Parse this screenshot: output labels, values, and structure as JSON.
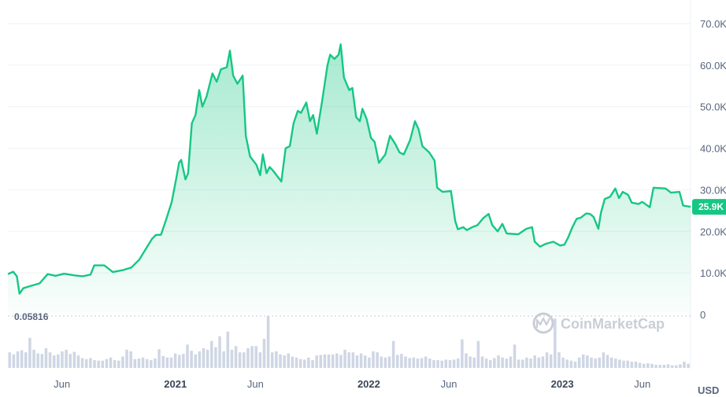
{
  "chart_data": {
    "type": "area",
    "currency": "USD",
    "watermark": "CoinMarketCap",
    "reference_value": "0.05816",
    "current_price_label": "25.9K",
    "current_price": 25900,
    "colors": {
      "line": "#16c784",
      "badge": "#16c784",
      "volume": "#cfd6e4",
      "grid": "#eff2f5"
    },
    "ylim": [
      0,
      70000
    ],
    "y_ticks": [
      {
        "value": 70000,
        "label": "70.0K"
      },
      {
        "value": 60000,
        "label": "60.0K"
      },
      {
        "value": 50000,
        "label": "50.0K"
      },
      {
        "value": 40000,
        "label": "40.0K"
      },
      {
        "value": 30000,
        "label": "30.0K"
      },
      {
        "value": 20000,
        "label": "20.0K"
      },
      {
        "value": 10000,
        "label": "10.0K"
      },
      {
        "value": 0,
        "label": "0"
      }
    ],
    "x_ticks": [
      {
        "date": "2020-06",
        "label": "Jun",
        "year": false
      },
      {
        "date": "2021-01",
        "label": "2021",
        "year": true
      },
      {
        "date": "2021-06",
        "label": "Jun",
        "year": false
      },
      {
        "date": "2022-01",
        "label": "2022",
        "year": true
      },
      {
        "date": "2022-06",
        "label": "Jun",
        "year": false
      },
      {
        "date": "2023-01",
        "label": "2023",
        "year": true
      },
      {
        "date": "2023-06",
        "label": "Jun",
        "year": false
      }
    ],
    "x_range": [
      "2020-02-20",
      "2023-08-31"
    ],
    "series": [
      {
        "values": [
          [
            "2020-02-20",
            9700
          ],
          [
            "2020-03-01",
            10300
          ],
          [
            "2020-03-08",
            9200
          ],
          [
            "2020-03-13",
            5000
          ],
          [
            "2020-03-20",
            6300
          ],
          [
            "2020-04-01",
            6800
          ],
          [
            "2020-04-20",
            7500
          ],
          [
            "2020-05-05",
            9700
          ],
          [
            "2020-05-20",
            9300
          ],
          [
            "2020-06-05",
            9800
          ],
          [
            "2020-06-25",
            9400
          ],
          [
            "2020-07-10",
            9200
          ],
          [
            "2020-07-25",
            9600
          ],
          [
            "2020-08-01",
            11800
          ],
          [
            "2020-08-20",
            11800
          ],
          [
            "2020-09-05",
            10200
          ],
          [
            "2020-09-25",
            10700
          ],
          [
            "2020-10-10",
            11300
          ],
          [
            "2020-10-25",
            13200
          ],
          [
            "2020-11-05",
            15500
          ],
          [
            "2020-11-18",
            18200
          ],
          [
            "2020-11-25",
            19100
          ],
          [
            "2020-12-05",
            19200
          ],
          [
            "2020-12-15",
            23000
          ],
          [
            "2020-12-25",
            27000
          ],
          [
            "2021-01-03",
            33000
          ],
          [
            "2021-01-08",
            36500
          ],
          [
            "2021-01-12",
            37200
          ],
          [
            "2021-01-20",
            32500
          ],
          [
            "2021-01-25",
            34000
          ],
          [
            "2021-02-01",
            46000
          ],
          [
            "2021-02-08",
            48000
          ],
          [
            "2021-02-15",
            54000
          ],
          [
            "2021-02-21",
            50000
          ],
          [
            "2021-03-01",
            52500
          ],
          [
            "2021-03-12",
            58000
          ],
          [
            "2021-03-20",
            56000
          ],
          [
            "2021-03-28",
            59000
          ],
          [
            "2021-04-08",
            59500
          ],
          [
            "2021-04-14",
            63500
          ],
          [
            "2021-04-20",
            57500
          ],
          [
            "2021-04-28",
            55500
          ],
          [
            "2021-05-08",
            57500
          ],
          [
            "2021-05-14",
            43000
          ],
          [
            "2021-05-22",
            38000
          ],
          [
            "2021-06-03",
            36000
          ],
          [
            "2021-06-10",
            33500
          ],
          [
            "2021-06-15",
            38500
          ],
          [
            "2021-06-22",
            34000
          ],
          [
            "2021-06-28",
            35500
          ],
          [
            "2021-07-05",
            34500
          ],
          [
            "2021-07-20",
            32000
          ],
          [
            "2021-07-28",
            40000
          ],
          [
            "2021-08-05",
            40500
          ],
          [
            "2021-08-12",
            46000
          ],
          [
            "2021-08-20",
            49000
          ],
          [
            "2021-08-26",
            48500
          ],
          [
            "2021-09-05",
            51000
          ],
          [
            "2021-09-12",
            46500
          ],
          [
            "2021-09-18",
            48000
          ],
          [
            "2021-09-25",
            43500
          ],
          [
            "2021-10-05",
            51500
          ],
          [
            "2021-10-15",
            60000
          ],
          [
            "2021-10-20",
            62500
          ],
          [
            "2021-10-28",
            61500
          ],
          [
            "2021-11-05",
            62500
          ],
          [
            "2021-11-09",
            65000
          ],
          [
            "2021-11-15",
            57000
          ],
          [
            "2021-11-25",
            54000
          ],
          [
            "2021-12-01",
            54500
          ],
          [
            "2021-12-08",
            47500
          ],
          [
            "2021-12-15",
            46500
          ],
          [
            "2021-12-20",
            49500
          ],
          [
            "2021-12-28",
            47000
          ],
          [
            "2022-01-05",
            42500
          ],
          [
            "2022-01-12",
            41500
          ],
          [
            "2022-01-20",
            36500
          ],
          [
            "2022-02-01",
            38500
          ],
          [
            "2022-02-10",
            43000
          ],
          [
            "2022-02-20",
            41000
          ],
          [
            "2022-02-28",
            39000
          ],
          [
            "2022-03-08",
            38500
          ],
          [
            "2022-03-20",
            42000
          ],
          [
            "2022-03-29",
            46500
          ],
          [
            "2022-04-05",
            44500
          ],
          [
            "2022-04-12",
            40500
          ],
          [
            "2022-04-25",
            39000
          ],
          [
            "2022-05-05",
            37000
          ],
          [
            "2022-05-10",
            30500
          ],
          [
            "2022-05-20",
            29500
          ],
          [
            "2022-06-05",
            29700
          ],
          [
            "2022-06-13",
            22500
          ],
          [
            "2022-06-18",
            20500
          ],
          [
            "2022-06-28",
            21000
          ],
          [
            "2022-07-05",
            20300
          ],
          [
            "2022-07-15",
            21000
          ],
          [
            "2022-07-25",
            21500
          ],
          [
            "2022-08-05",
            23200
          ],
          [
            "2022-08-15",
            24200
          ],
          [
            "2022-08-22",
            21500
          ],
          [
            "2022-09-01",
            20000
          ],
          [
            "2022-09-10",
            21800
          ],
          [
            "2022-09-18",
            19500
          ],
          [
            "2022-09-28",
            19400
          ],
          [
            "2022-10-10",
            19300
          ],
          [
            "2022-10-25",
            20600
          ],
          [
            "2022-11-05",
            21000
          ],
          [
            "2022-11-10",
            17500
          ],
          [
            "2022-11-20",
            16300
          ],
          [
            "2022-12-01",
            17000
          ],
          [
            "2022-12-15",
            17500
          ],
          [
            "2022-12-28",
            16600
          ],
          [
            "2023-01-05",
            16800
          ],
          [
            "2023-01-12",
            18500
          ],
          [
            "2023-01-20",
            21000
          ],
          [
            "2023-01-28",
            23000
          ],
          [
            "2023-02-05",
            23300
          ],
          [
            "2023-02-15",
            24300
          ],
          [
            "2023-02-22",
            24200
          ],
          [
            "2023-03-01",
            23500
          ],
          [
            "2023-03-10",
            20600
          ],
          [
            "2023-03-15",
            24500
          ],
          [
            "2023-03-22",
            27800
          ],
          [
            "2023-04-01",
            28300
          ],
          [
            "2023-04-11",
            30300
          ],
          [
            "2023-04-18",
            28000
          ],
          [
            "2023-04-25",
            29500
          ],
          [
            "2023-05-05",
            28800
          ],
          [
            "2023-05-12",
            26900
          ],
          [
            "2023-05-25",
            26600
          ],
          [
            "2023-06-01",
            27100
          ],
          [
            "2023-06-15",
            25800
          ],
          [
            "2023-06-22",
            30500
          ],
          [
            "2023-07-05",
            30400
          ],
          [
            "2023-07-15",
            30300
          ],
          [
            "2023-07-25",
            29300
          ],
          [
            "2023-08-10",
            29500
          ],
          [
            "2023-08-17",
            26200
          ],
          [
            "2023-08-31",
            25900
          ]
        ]
      }
    ],
    "volume": {
      "start": "2020-02-20",
      "end": "2023-08-31",
      "max": 100,
      "values": [
        30,
        26,
        32,
        34,
        30,
        58,
        35,
        28,
        27,
        38,
        30,
        24,
        26,
        32,
        35,
        27,
        31,
        24,
        19,
        17,
        19,
        15,
        14,
        14,
        17,
        20,
        15,
        14,
        22,
        35,
        32,
        17,
        18,
        20,
        17,
        15,
        18,
        36,
        23,
        20,
        20,
        28,
        25,
        27,
        45,
        33,
        26,
        32,
        38,
        35,
        52,
        40,
        61,
        32,
        70,
        35,
        42,
        30,
        30,
        38,
        42,
        42,
        30,
        56,
        100,
        30,
        32,
        26,
        24,
        28,
        22,
        20,
        17,
        16,
        20,
        15,
        24,
        25,
        26,
        26,
        26,
        28,
        25,
        35,
        30,
        30,
        24,
        28,
        24,
        20,
        32,
        30,
        22,
        20,
        22,
        52,
        25,
        27,
        22,
        19,
        20,
        18,
        19,
        22,
        18,
        15,
        15,
        14,
        16,
        15,
        16,
        18,
        55,
        28,
        22,
        20,
        52,
        22,
        18,
        15,
        19,
        24,
        20,
        18,
        22,
        45,
        16,
        16,
        20,
        18,
        24,
        20,
        22,
        30,
        26,
        95,
        30,
        20,
        16,
        14,
        12,
        20,
        26,
        24,
        20,
        18,
        20,
        30,
        25,
        20,
        18,
        16,
        14,
        14,
        12,
        12,
        10,
        8,
        9,
        8,
        6,
        6,
        6,
        7,
        5,
        5,
        7,
        12,
        8
      ]
    }
  }
}
